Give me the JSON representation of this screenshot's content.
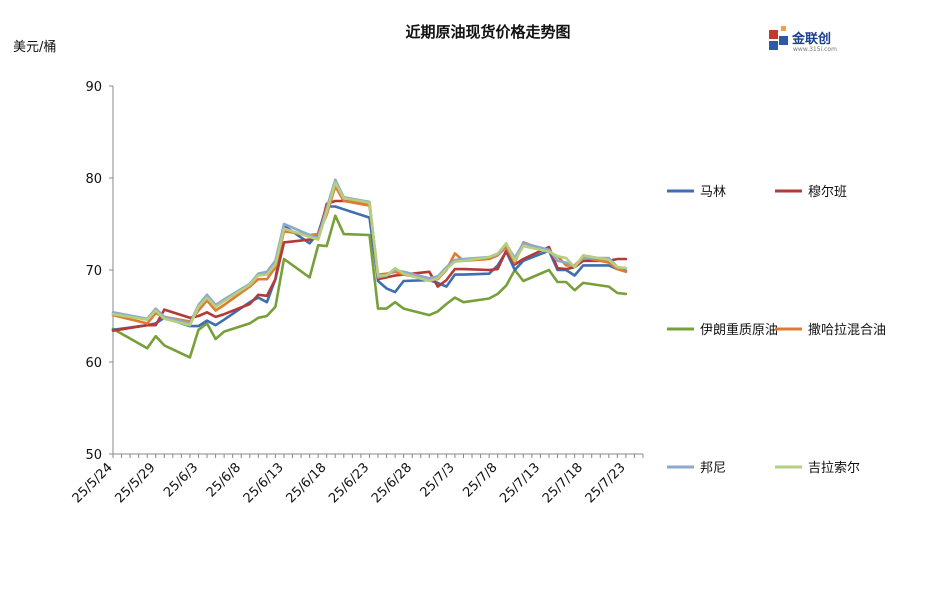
{
  "chart_data": {
    "type": "line",
    "title": "近期原油现货价格走势图",
    "ylabel": "美元/桶",
    "ylim": [
      50,
      90
    ],
    "yticks": [
      50,
      60,
      70,
      80,
      90
    ],
    "grid": false,
    "legend_position": "right",
    "x_tick_labels": [
      "25/5/24",
      "25/5/29",
      "25/6/3",
      "25/6/8",
      "25/6/13",
      "25/6/18",
      "25/6/23",
      "25/6/28",
      "25/7/3",
      "25/7/8",
      "25/7/13",
      "25/7/18",
      "25/7/23"
    ],
    "x": [
      "25/5/24",
      "25/5/28",
      "25/5/29",
      "25/5/30",
      "25/6/2",
      "25/6/3",
      "25/6/4",
      "25/6/5",
      "25/6/6",
      "25/6/9",
      "25/6/10",
      "25/6/11",
      "25/6/12",
      "25/6/13",
      "25/6/16",
      "25/6/17",
      "25/6/18",
      "25/6/19",
      "25/6/20",
      "25/6/23",
      "25/6/24",
      "25/6/25",
      "25/6/26",
      "25/6/27",
      "25/6/30",
      "25/7/1",
      "25/7/2",
      "25/7/3",
      "25/7/4",
      "25/7/7",
      "25/7/8",
      "25/7/9",
      "25/7/10",
      "25/7/11",
      "25/7/14",
      "25/7/15",
      "25/7/16",
      "25/7/17",
      "25/7/18",
      "25/7/21",
      "25/7/22",
      "25/7/23"
    ],
    "series": [
      {
        "name": "马林",
        "color": "#3d6fb0",
        "values": [
          63.5,
          64.0,
          64.2,
          64.8,
          63.9,
          63.9,
          64.5,
          64.0,
          64.6,
          66.5,
          67.0,
          66.5,
          69.0,
          74.8,
          72.9,
          74.0,
          76.9,
          76.9,
          76.6,
          75.7,
          68.8,
          68.0,
          67.6,
          68.8,
          68.9,
          68.6,
          68.2,
          69.5,
          69.5,
          69.6,
          70.5,
          72.0,
          70.0,
          71.0,
          72.1,
          70.0,
          70.0,
          69.4,
          70.5,
          70.5,
          70.1,
          69.9
        ]
      },
      {
        "name": "穆尔班",
        "color": "#b23a37",
        "values": [
          63.4,
          64.0,
          64.0,
          65.7,
          64.8,
          65.0,
          65.4,
          64.9,
          65.2,
          66.3,
          67.3,
          67.2,
          69.0,
          73.0,
          73.3,
          73.5,
          77.2,
          77.5,
          77.5,
          77.3,
          69.0,
          69.2,
          69.4,
          69.5,
          69.8,
          68.2,
          68.9,
          70.1,
          70.1,
          70.0,
          70.1,
          72.1,
          70.6,
          71.2,
          72.5,
          70.2,
          70.1,
          70.3,
          71.0,
          71.0,
          71.2,
          71.2
        ]
      },
      {
        "name": "伊朗重质原油",
        "color": "#77a03a",
        "values": [
          63.6,
          61.5,
          62.8,
          61.8,
          60.5,
          63.5,
          64.2,
          62.5,
          63.3,
          64.2,
          64.8,
          65.0,
          66.0,
          71.2,
          69.2,
          72.7,
          72.6,
          75.9,
          73.9,
          73.8,
          65.8,
          65.8,
          66.5,
          65.8,
          65.1,
          65.5,
          66.3,
          67.0,
          66.5,
          66.9,
          67.4,
          68.3,
          70.0,
          68.8,
          70.0,
          68.7,
          68.7,
          67.8,
          68.6,
          68.2,
          67.5,
          67.4
        ]
      },
      {
        "name": "撒哈拉混合油",
        "color": "#e07b31",
        "values": [
          65.1,
          64.2,
          65.3,
          64.9,
          64.4,
          65.6,
          66.7,
          65.6,
          66.2,
          68.2,
          69.0,
          69.0,
          70.3,
          74.2,
          73.8,
          73.9,
          76.0,
          79.1,
          77.5,
          77.0,
          69.5,
          69.6,
          69.8,
          69.5,
          69.0,
          69.0,
          70.0,
          71.8,
          71.0,
          71.2,
          71.6,
          72.5,
          70.8,
          73.0,
          72.0,
          71.5,
          70.5,
          70.5,
          71.4,
          70.8,
          70.1,
          69.8
        ]
      },
      {
        "name": "邦尼",
        "color": "#8da9cf",
        "values": [
          65.4,
          64.7,
          65.8,
          64.9,
          64.2,
          66.2,
          67.3,
          66.2,
          66.8,
          68.5,
          69.6,
          69.8,
          71.0,
          75.0,
          73.8,
          73.5,
          76.7,
          79.8,
          77.9,
          77.4,
          69.2,
          69.4,
          70.0,
          69.8,
          69.1,
          69.3,
          70.3,
          71.1,
          71.2,
          71.4,
          71.7,
          72.8,
          71.3,
          72.9,
          72.2,
          71.0,
          70.8,
          70.4,
          71.3,
          71.3,
          70.3,
          70.2
        ]
      },
      {
        "name": "吉拉索尔",
        "color": "#b5d07d",
        "values": [
          65.2,
          64.6,
          65.6,
          64.7,
          64.0,
          66.0,
          67.0,
          66.0,
          66.6,
          68.4,
          69.4,
          69.5,
          70.6,
          74.5,
          73.6,
          73.3,
          76.3,
          79.5,
          77.8,
          77.3,
          69.4,
          69.4,
          70.2,
          69.6,
          68.8,
          69.1,
          70.1,
          70.9,
          71.0,
          71.4,
          71.8,
          72.9,
          71.0,
          72.6,
          72.0,
          71.5,
          71.3,
          70.3,
          71.6,
          71.1,
          70.3,
          70.2
        ]
      }
    ]
  },
  "logo": {
    "text": "金联创",
    "sub": "www.315i.com"
  }
}
